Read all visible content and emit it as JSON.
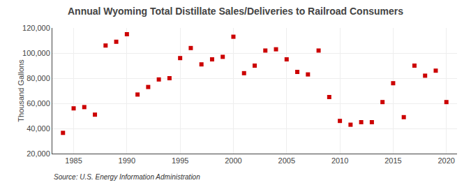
{
  "chart_data": {
    "type": "scatter",
    "title": "Annual Wyoming Total Distillate Sales/Deliveries to Railroad Consumers",
    "y_label": "Thousand Gallons",
    "annotations": [
      "Source: U.S. Energy Information Administration"
    ],
    "x": [
      1984,
      1985,
      1986,
      1987,
      1988,
      1989,
      1990,
      1991,
      1992,
      1993,
      1994,
      1995,
      1996,
      1997,
      1998,
      1999,
      2000,
      2001,
      2002,
      2003,
      2004,
      2005,
      2006,
      2007,
      2008,
      2009,
      2010,
      2011,
      2012,
      2013,
      2014,
      2015,
      2016,
      2017,
      2018,
      2019,
      2020
    ],
    "values": [
      36500,
      56000,
      57000,
      51000,
      106000,
      109000,
      115000,
      67000,
      73000,
      79000,
      80000,
      96000,
      104000,
      91000,
      95000,
      97000,
      113000,
      84000,
      90000,
      102000,
      103000,
      95000,
      85000,
      83000,
      102000,
      65000,
      46000,
      43000,
      45000,
      45000,
      61000,
      76000,
      49000,
      90000,
      82000,
      86000,
      61000
    ],
    "color": "#cc0000",
    "marker": "square",
    "xlim": [
      1983,
      2021
    ],
    "xticks": [
      1985,
      1990,
      1995,
      2000,
      2005,
      2010,
      2015,
      2020
    ],
    "ylim": [
      20000,
      120000
    ],
    "yticks": [
      {
        "value": 20000,
        "label": "20,000"
      },
      {
        "value": 40000,
        "label": "40,000"
      },
      {
        "value": 60000,
        "label": "60,000"
      },
      {
        "value": 80000,
        "label": "80,000"
      },
      {
        "value": 100000,
        "label": "100,000"
      },
      {
        "value": 120000,
        "label": "120,000"
      }
    ],
    "grid": true
  }
}
